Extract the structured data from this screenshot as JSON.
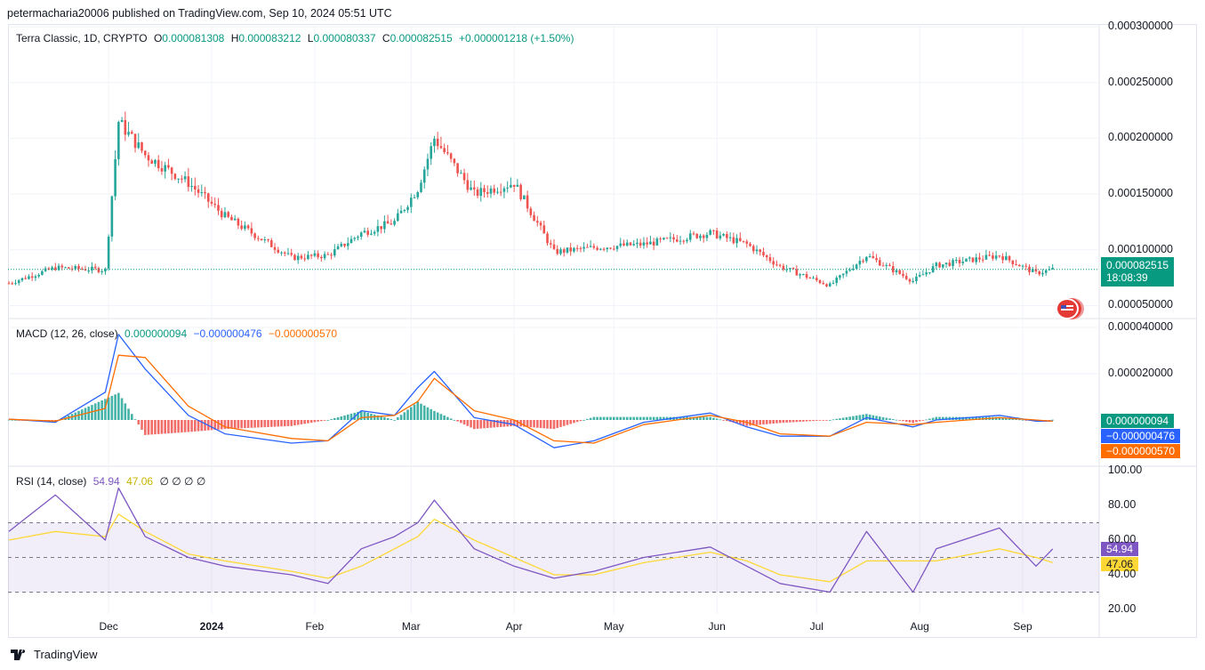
{
  "header": {
    "publisher": "petermacharia20006 published on TradingView.com, Sep 10, 2024 05:51 UTC"
  },
  "main_legend": {
    "symbol": "Terra Classic, 1D, CRYPTO",
    "open_label": "O",
    "open": "0.000081308",
    "high_label": "H",
    "high": "0.000083212",
    "low_label": "L",
    "low": "0.000080337",
    "close_label": "C",
    "close": "0.000082515",
    "change": "+0.000001218 (+1.50%)"
  },
  "price_tag": {
    "price": "0.000082515",
    "countdown": "18:08:39"
  },
  "macd_legend": {
    "title": "MACD (12, 26, close)",
    "hist": "0.000000094",
    "macd": "−0.000000476",
    "signal": "−0.000000570"
  },
  "macd_tags": {
    "hist": "0.000000094",
    "macd": "−0.000000476",
    "signal": "−0.000000570"
  },
  "rsi_legend": {
    "title": "RSI (14, close)",
    "rsi": "54.94",
    "ma": "47.06",
    "extras": "∅ ∅ ∅ ∅"
  },
  "rsi_tags": {
    "rsi": "54.94",
    "ma": "47.06"
  },
  "footer": {
    "brand": "TradingView"
  },
  "colors": {
    "up": "#26a69a",
    "down": "#ef5350",
    "macd": "#2962ff",
    "signal": "#ff6d00",
    "rsi": "#7e57c2",
    "rsi_ma": "#fdd835"
  },
  "chart_data": [
    {
      "type": "candlestick",
      "title": "Terra Classic, 1D, CRYPTO",
      "ylim": [
        4e-05,
        0.0003
      ],
      "y_ticks": [
        "0.000300000",
        "0.000250000",
        "0.000200000",
        "0.000150000",
        "0.000100000",
        "0.000050000"
      ],
      "x_ticks": [
        "Dec",
        "2024",
        "Feb",
        "Mar",
        "Apr",
        "May",
        "Jun",
        "Jul",
        "Aug",
        "Sep"
      ],
      "x": [
        "2023-11-01",
        "2023-11-15",
        "2023-11-30",
        "2023-12-04",
        "2023-12-12",
        "2023-12-25",
        "2024-01-05",
        "2024-01-25",
        "2024-02-05",
        "2024-02-15",
        "2024-02-25",
        "2024-03-03",
        "2024-03-08",
        "2024-03-20",
        "2024-04-01",
        "2024-04-13",
        "2024-04-25",
        "2024-05-10",
        "2024-05-30",
        "2024-06-10",
        "2024-06-20",
        "2024-07-05",
        "2024-07-16",
        "2024-07-30",
        "2024-08-06",
        "2024-08-25",
        "2024-09-05",
        "2024-09-10"
      ],
      "close": [
        7e-05,
        8.4e-05,
        8.2e-05,
        0.000215,
        0.000185,
        0.00016,
        0.00013,
        9.3e-05,
        9.5e-05,
        0.000115,
        0.000125,
        0.000155,
        0.0002,
        0.00015,
        0.00016,
        9.8e-05,
        0.000102,
        0.000105,
        0.000115,
        0.000105,
        8.5e-05,
        6.8e-05,
        9.5e-05,
        7.2e-05,
        8.6e-05,
        9.5e-05,
        7.9e-05,
        8.25e-05
      ]
    },
    {
      "type": "line",
      "title": "MACD (12, 26, close)",
      "y_ticks": [
        "0.000040000",
        "0.000020000"
      ],
      "series": [
        {
          "name": "MACD",
          "values": [
            4e-07,
            -1e-06,
            1.2e-05,
            3.7e-05,
            2.2e-05,
            2e-06,
            -6e-06,
            -1e-05,
            -9e-06,
            4e-06,
            2e-06,
            1.4e-05,
            2.1e-05,
            1e-06,
            -2e-06,
            -1.2e-05,
            -9e-06,
            -1e-06,
            3e-06,
            -3e-06,
            -7e-06,
            -7e-06,
            1e-06,
            -3e-06,
            0.0,
            2e-06,
            -5e-07,
            -4.76e-07
          ]
        },
        {
          "name": "Signal",
          "values": [
            3e-07,
            -5e-07,
            5e-06,
            2.8e-05,
            2.7e-05,
            6e-06,
            -3e-06,
            -8e-06,
            -9e-06,
            1e-06,
            2e-06,
            8e-06,
            1.8e-05,
            4e-06,
            0.0,
            -9e-06,
            -1e-05,
            -2e-06,
            2e-06,
            -1e-06,
            -6e-06,
            -7e-06,
            -1e-06,
            -2e-06,
            -1e-06,
            1e-06,
            0.0,
            -5.7e-07
          ]
        }
      ]
    },
    {
      "type": "line",
      "title": "RSI (14, close)",
      "y_ticks": [
        "100.00",
        "80.00",
        "60.00",
        "40.00",
        "20.00"
      ],
      "bands": [
        70,
        50,
        30
      ],
      "series": [
        {
          "name": "RSI",
          "values": [
            65,
            86,
            60,
            90,
            62,
            50,
            45,
            40,
            35,
            55,
            62,
            70,
            83,
            55,
            45,
            38,
            42,
            50,
            56,
            45,
            35,
            30,
            65,
            30,
            55,
            67,
            45,
            54.94
          ]
        },
        {
          "name": "MA",
          "values": [
            60,
            65,
            62,
            75,
            65,
            52,
            48,
            42,
            38,
            45,
            55,
            62,
            72,
            60,
            50,
            40,
            40,
            47,
            53,
            48,
            40,
            36,
            48,
            48,
            48,
            55,
            50,
            47.06
          ]
        }
      ]
    }
  ]
}
